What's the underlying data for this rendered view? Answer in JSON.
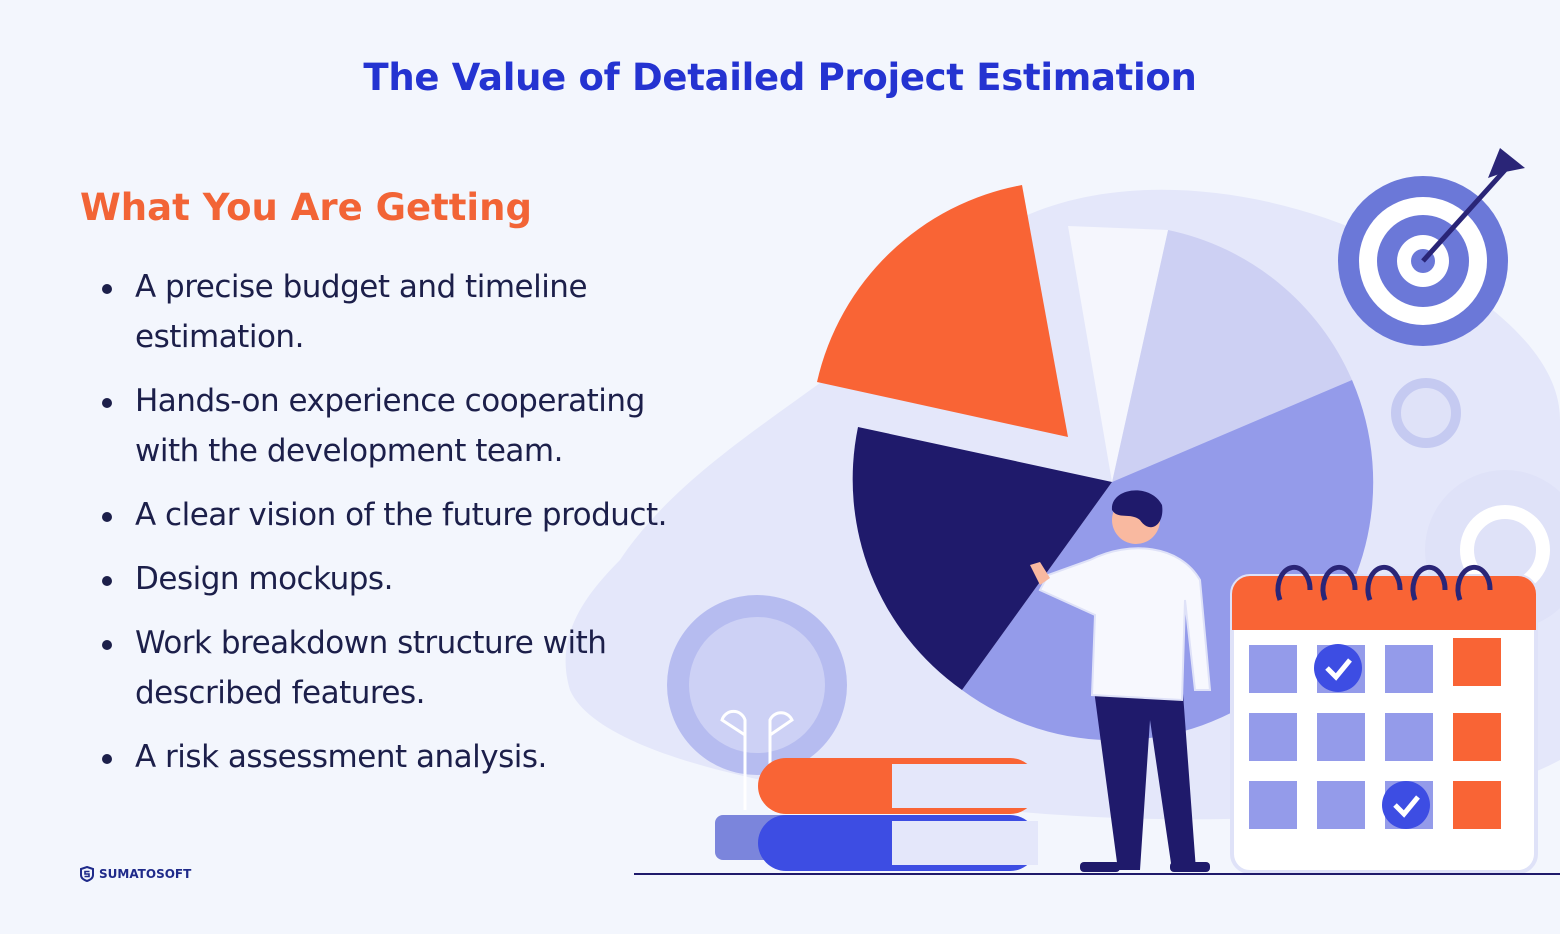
{
  "header": {
    "title": "The Value of Detailed Project Estimation"
  },
  "section": {
    "heading": "What You Are Getting",
    "items": [
      "A precise budget and timeline estimation.",
      "Hands-on experience cooperating with the development team.",
      "A clear vision of the future product.",
      "Design mockups.",
      "Work breakdown structure with described features.",
      "A risk assessment analysis."
    ]
  },
  "footer": {
    "brand": "SUMATOSOFT"
  }
}
